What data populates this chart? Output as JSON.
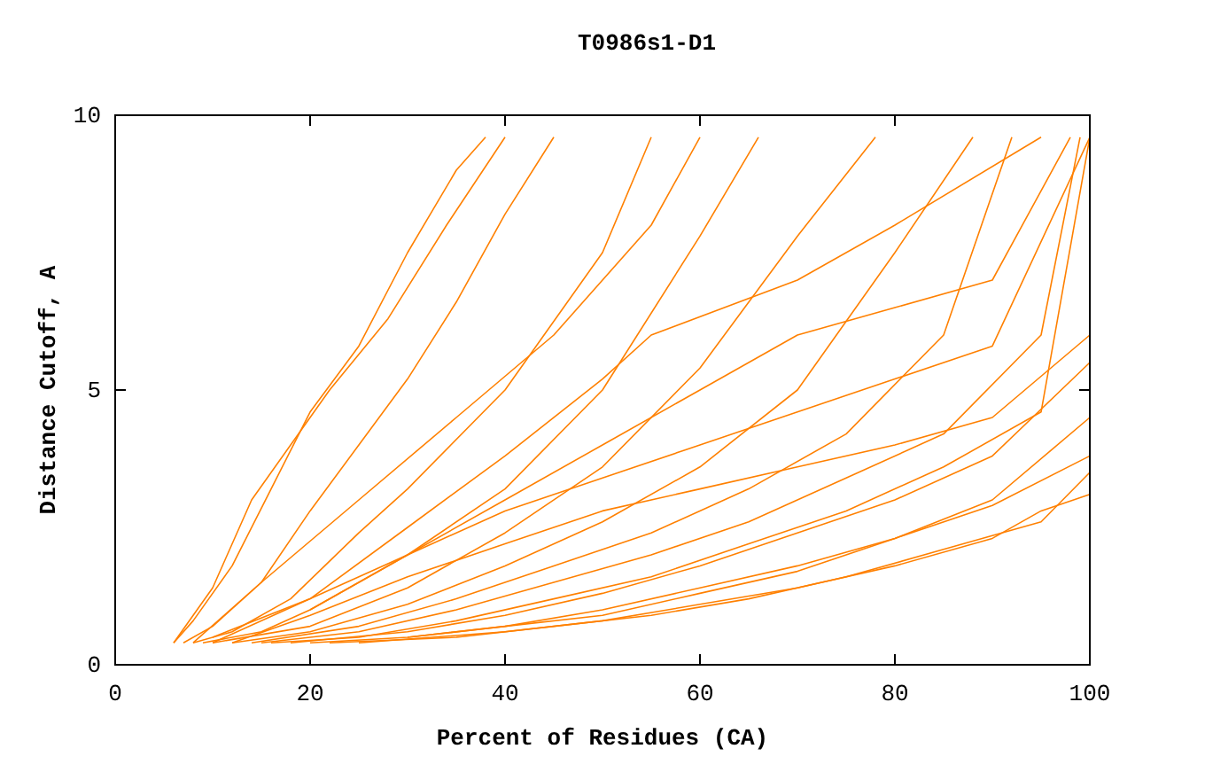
{
  "chart_data": {
    "type": "line",
    "title": "T0986s1-D1",
    "xlabel": "Percent of Residues (CA)",
    "ylabel": "Distance Cutoff, A",
    "xlim": [
      0,
      100
    ],
    "ylim": [
      0,
      10
    ],
    "xticks": [
      0,
      20,
      40,
      60,
      80,
      100
    ],
    "yticks": [
      0,
      5,
      10
    ],
    "grid": false,
    "marker": "none",
    "line_style": "solid",
    "series": [
      {
        "color": "#ff8000",
        "x": [
          6,
          8,
          12,
          16,
          20,
          25,
          30,
          35,
          38
        ],
        "values": [
          0.4,
          0.8,
          1.8,
          3.2,
          4.6,
          5.8,
          7.5,
          9,
          9.6
        ]
      },
      {
        "color": "#ff8000",
        "x": [
          7,
          10,
          15,
          20,
          25,
          30,
          35,
          40,
          45
        ],
        "values": [
          0.4,
          0.7,
          1.5,
          2.8,
          4,
          5.2,
          6.6,
          8.2,
          9.6
        ]
      },
      {
        "color": "#ff8000",
        "x": [
          8,
          12,
          18,
          25,
          30,
          40,
          50,
          55
        ],
        "values": [
          0.4,
          0.6,
          1.2,
          2.4,
          3.2,
          5,
          7.5,
          9.6
        ]
      },
      {
        "color": "#ff8000",
        "x": [
          9,
          15,
          20,
          30,
          40,
          50,
          60,
          66
        ],
        "values": [
          0.4,
          0.6,
          1,
          2,
          3.2,
          5,
          7.8,
          9.6
        ]
      },
      {
        "color": "#ff8000",
        "x": [
          10,
          20,
          30,
          40,
          50,
          60,
          70,
          78
        ],
        "values": [
          0.4,
          0.7,
          1.4,
          2.4,
          3.6,
          5.4,
          7.8,
          9.6
        ]
      },
      {
        "color": "#ff8000",
        "x": [
          12,
          20,
          30,
          40,
          50,
          60,
          70,
          80,
          88
        ],
        "values": [
          0.4,
          0.6,
          1.1,
          1.8,
          2.6,
          3.6,
          5,
          7.5,
          9.6
        ]
      },
      {
        "color": "#ff8000",
        "x": [
          14,
          25,
          35,
          45,
          55,
          65,
          75,
          85,
          92
        ],
        "values": [
          0.4,
          0.7,
          1.2,
          1.8,
          2.4,
          3.2,
          4.2,
          6,
          9.6
        ]
      },
      {
        "color": "#ff8000",
        "x": [
          15,
          25,
          35,
          45,
          55,
          65,
          75,
          85,
          95,
          99
        ],
        "values": [
          0.4,
          0.6,
          1,
          1.5,
          2,
          2.6,
          3.4,
          4.2,
          6,
          9.6
        ]
      },
      {
        "color": "#ff8000",
        "x": [
          16,
          25,
          35,
          45,
          55,
          65,
          75,
          85,
          95,
          100
        ],
        "values": [
          0.4,
          0.5,
          0.8,
          1.2,
          1.6,
          2.2,
          2.8,
          3.6,
          4.6,
          9.6
        ]
      },
      {
        "color": "#ff8000",
        "x": [
          18,
          30,
          40,
          50,
          60,
          70,
          80,
          90,
          100
        ],
        "values": [
          0.4,
          0.6,
          0.9,
          1.3,
          1.8,
          2.4,
          3,
          3.8,
          5.5
        ]
      },
      {
        "color": "#ff8000",
        "x": [
          20,
          30,
          40,
          50,
          60,
          70,
          80,
          90,
          100
        ],
        "values": [
          0.4,
          0.5,
          0.7,
          1,
          1.4,
          1.8,
          2.3,
          2.9,
          3.8
        ]
      },
      {
        "color": "#ff8000",
        "x": [
          22,
          35,
          45,
          55,
          65,
          75,
          85,
          95,
          100
        ],
        "values": [
          0.4,
          0.5,
          0.7,
          0.9,
          1.2,
          1.6,
          2.1,
          2.6,
          3.5
        ]
      },
      {
        "color": "#ff8000",
        "x": [
          25,
          40,
          50,
          60,
          70,
          80,
          90,
          95,
          100
        ],
        "values": [
          0.4,
          0.6,
          0.8,
          1.1,
          1.4,
          1.8,
          2.3,
          2.8,
          3.1
        ]
      },
      {
        "color": "#ff8000",
        "x": [
          6,
          10,
          14,
          18,
          22,
          28,
          34,
          40
        ],
        "values": [
          0.4,
          1.4,
          3,
          4,
          5,
          6.3,
          8,
          9.6
        ]
      },
      {
        "color": "#ff8000",
        "x": [
          20,
          30,
          40,
          50,
          60,
          70,
          80,
          90,
          98
        ],
        "values": [
          1,
          2,
          3,
          4,
          5,
          6,
          6.5,
          7,
          9.6
        ]
      },
      {
        "color": "#ff8000",
        "x": [
          10,
          20,
          30,
          40,
          50,
          60,
          70,
          80,
          90,
          100
        ],
        "values": [
          0.5,
          1.2,
          2,
          2.8,
          3.4,
          4,
          4.6,
          5.2,
          5.8,
          9.6
        ]
      },
      {
        "color": "#ff8000",
        "x": [
          12,
          20,
          30,
          40,
          50,
          60,
          70,
          80,
          90,
          100
        ],
        "values": [
          0.4,
          0.9,
          1.6,
          2.2,
          2.8,
          3.2,
          3.6,
          4,
          4.5,
          6
        ]
      },
      {
        "color": "#ff8000",
        "x": [
          30,
          40,
          50,
          60,
          70,
          80,
          90,
          100
        ],
        "values": [
          0.5,
          0.7,
          0.9,
          1.3,
          1.7,
          2.3,
          3,
          4.5
        ]
      },
      {
        "color": "#ff8000",
        "x": [
          8,
          15,
          25,
          35,
          45,
          55,
          60
        ],
        "values": [
          0.4,
          1.5,
          3,
          4.5,
          6,
          8,
          9.6
        ]
      },
      {
        "color": "#ff8000",
        "x": [
          10,
          20,
          30,
          40,
          50,
          55,
          70,
          80,
          95
        ],
        "values": [
          0.4,
          1.2,
          2.5,
          3.8,
          5.2,
          6,
          7,
          8,
          9.6
        ]
      }
    ]
  }
}
